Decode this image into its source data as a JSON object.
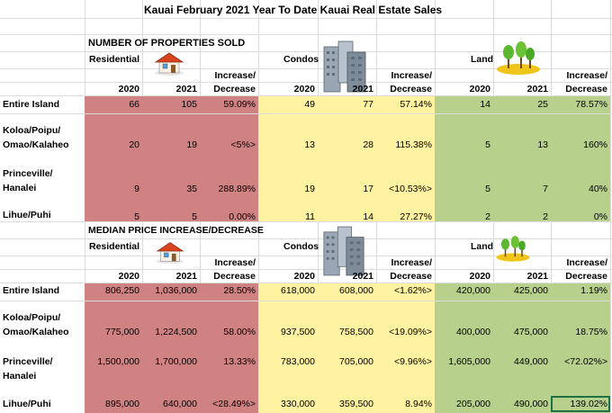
{
  "title": "Kauai February 2021 Year To Date Kauai Real Estate Sales",
  "colors": {
    "residential": "#d08282",
    "condos": "#fff2a0",
    "land": "#b7d08c"
  },
  "icons": {
    "house": "house-icon",
    "condo": "condo-buildings-icon",
    "land": "trees-land-icon"
  },
  "sold": {
    "heading": "NUMBER OF PROPERTIES SOLD",
    "group_labels": {
      "res": "Residential",
      "con": "Condos",
      "land": "Land"
    },
    "col_labels": {
      "y1": "2020",
      "y2": "2021",
      "inc_a": "Increase/",
      "inc_b": "Decrease"
    },
    "rows": [
      {
        "label": "Entire Island",
        "label2": "",
        "res": [
          "66",
          "105",
          "59.09%"
        ],
        "con": [
          "49",
          "77",
          "57.14%"
        ],
        "land": [
          "14",
          "25",
          "78.57%"
        ]
      },
      {
        "label": "Koloa/Poipu/",
        "label2": "Omao/Kalaheo",
        "res": [
          "20",
          "19",
          "<5%>"
        ],
        "con": [
          "13",
          "28",
          "115.38%"
        ],
        "land": [
          "5",
          "13",
          "160%"
        ]
      },
      {
        "label": "Princeville/",
        "label2": "Hanalei",
        "res": [
          "9",
          "35",
          "288.89%"
        ],
        "con": [
          "19",
          "17",
          "<10.53%>"
        ],
        "land": [
          "5",
          "7",
          "40%"
        ]
      },
      {
        "label": "Lihue/Puhi",
        "label2": "",
        "res": [
          "5",
          "5",
          "0.00%"
        ],
        "con": [
          "11",
          "14",
          "27.27%"
        ],
        "land": [
          "2",
          "2",
          "0%"
        ]
      }
    ]
  },
  "median": {
    "heading": "MEDIAN PRICE INCREASE/DECREASE",
    "group_labels": {
      "res": "Residential",
      "con": "Condos",
      "land": "Land"
    },
    "col_labels": {
      "y1": "2020",
      "y2": "2021",
      "inc_a": "Increase/",
      "inc_b": "Decrease"
    },
    "rows": [
      {
        "label": "Entire Island",
        "label2": "",
        "res": [
          "806,250",
          "1,036,000",
          "28.50%"
        ],
        "con": [
          "618,000",
          "608,000",
          "<1.62%>"
        ],
        "land": [
          "420,000",
          "425,000",
          "1.19%"
        ]
      },
      {
        "label": "Koloa/Poipu/",
        "label2": "Omao/Kalaheo",
        "res": [
          "775,000",
          "1,224,500",
          "58.00%"
        ],
        "con": [
          "937,500",
          "758,500",
          "<19.09%>"
        ],
        "land": [
          "400,000",
          "475,000",
          "18.75%"
        ]
      },
      {
        "label": "Princeville/",
        "label2": "Hanalei",
        "res": [
          "1,500,000",
          "1,700,000",
          "13.33%"
        ],
        "con": [
          "783,000",
          "705,000",
          "<9.96%>"
        ],
        "land": [
          "1,605,000",
          "449,000",
          "<72.02%>"
        ]
      },
      {
        "label": "Lihue/Puhi",
        "label2": "",
        "res": [
          "895,000",
          "640,000",
          "<28.49%>"
        ],
        "con": [
          "330,000",
          "359,500",
          "8.94%"
        ],
        "land": [
          "205,000",
          "490,000",
          "139.02%"
        ]
      }
    ]
  }
}
